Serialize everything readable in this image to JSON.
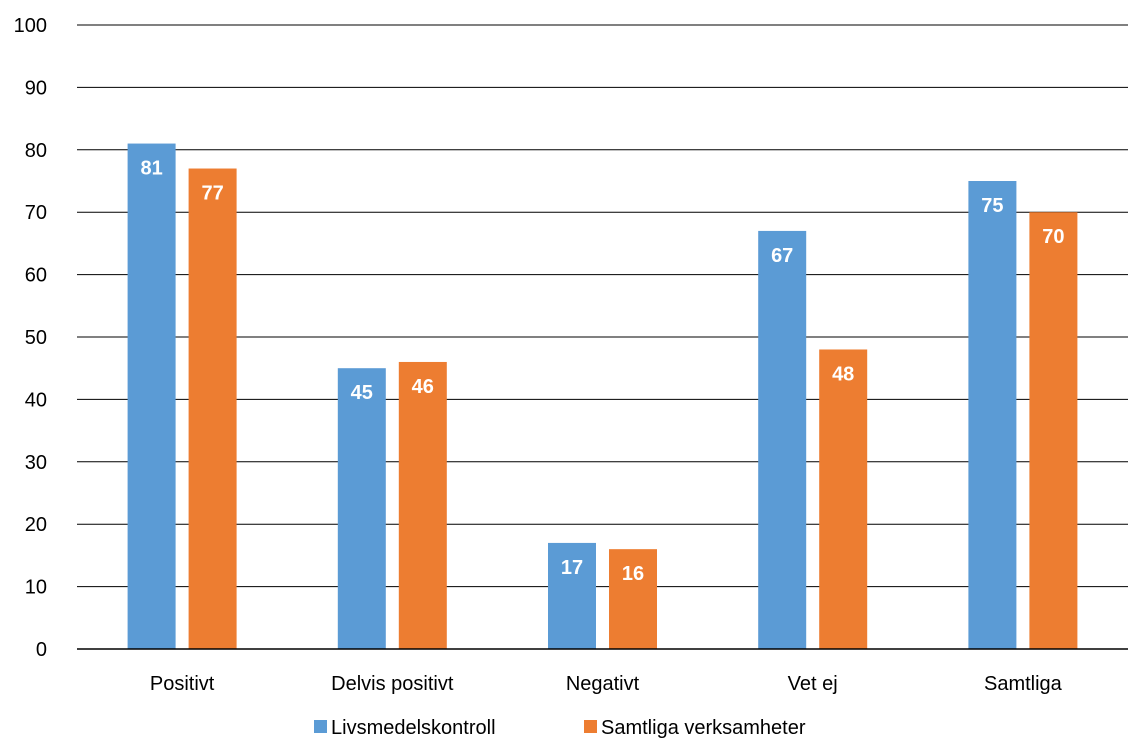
{
  "chart_data": {
    "type": "bar",
    "categories": [
      "Positivt",
      "Delvis positivt",
      "Negativt",
      "Vet ej",
      "Samtliga"
    ],
    "series": [
      {
        "name": "Livsmedelskontroll",
        "values": [
          81,
          45,
          17,
          67,
          75
        ],
        "color": "#5b9bd5"
      },
      {
        "name": "Samtliga verksamheter",
        "values": [
          77,
          46,
          16,
          48,
          70
        ],
        "color": "#ed7d31"
      }
    ],
    "ylim": [
      0,
      100
    ],
    "yticks": [
      0,
      10,
      20,
      30,
      40,
      50,
      60,
      70,
      80,
      90,
      100
    ],
    "grid": true,
    "data_labels": true,
    "legend_position": "bottom",
    "title": "",
    "xlabel": "",
    "ylabel": ""
  }
}
